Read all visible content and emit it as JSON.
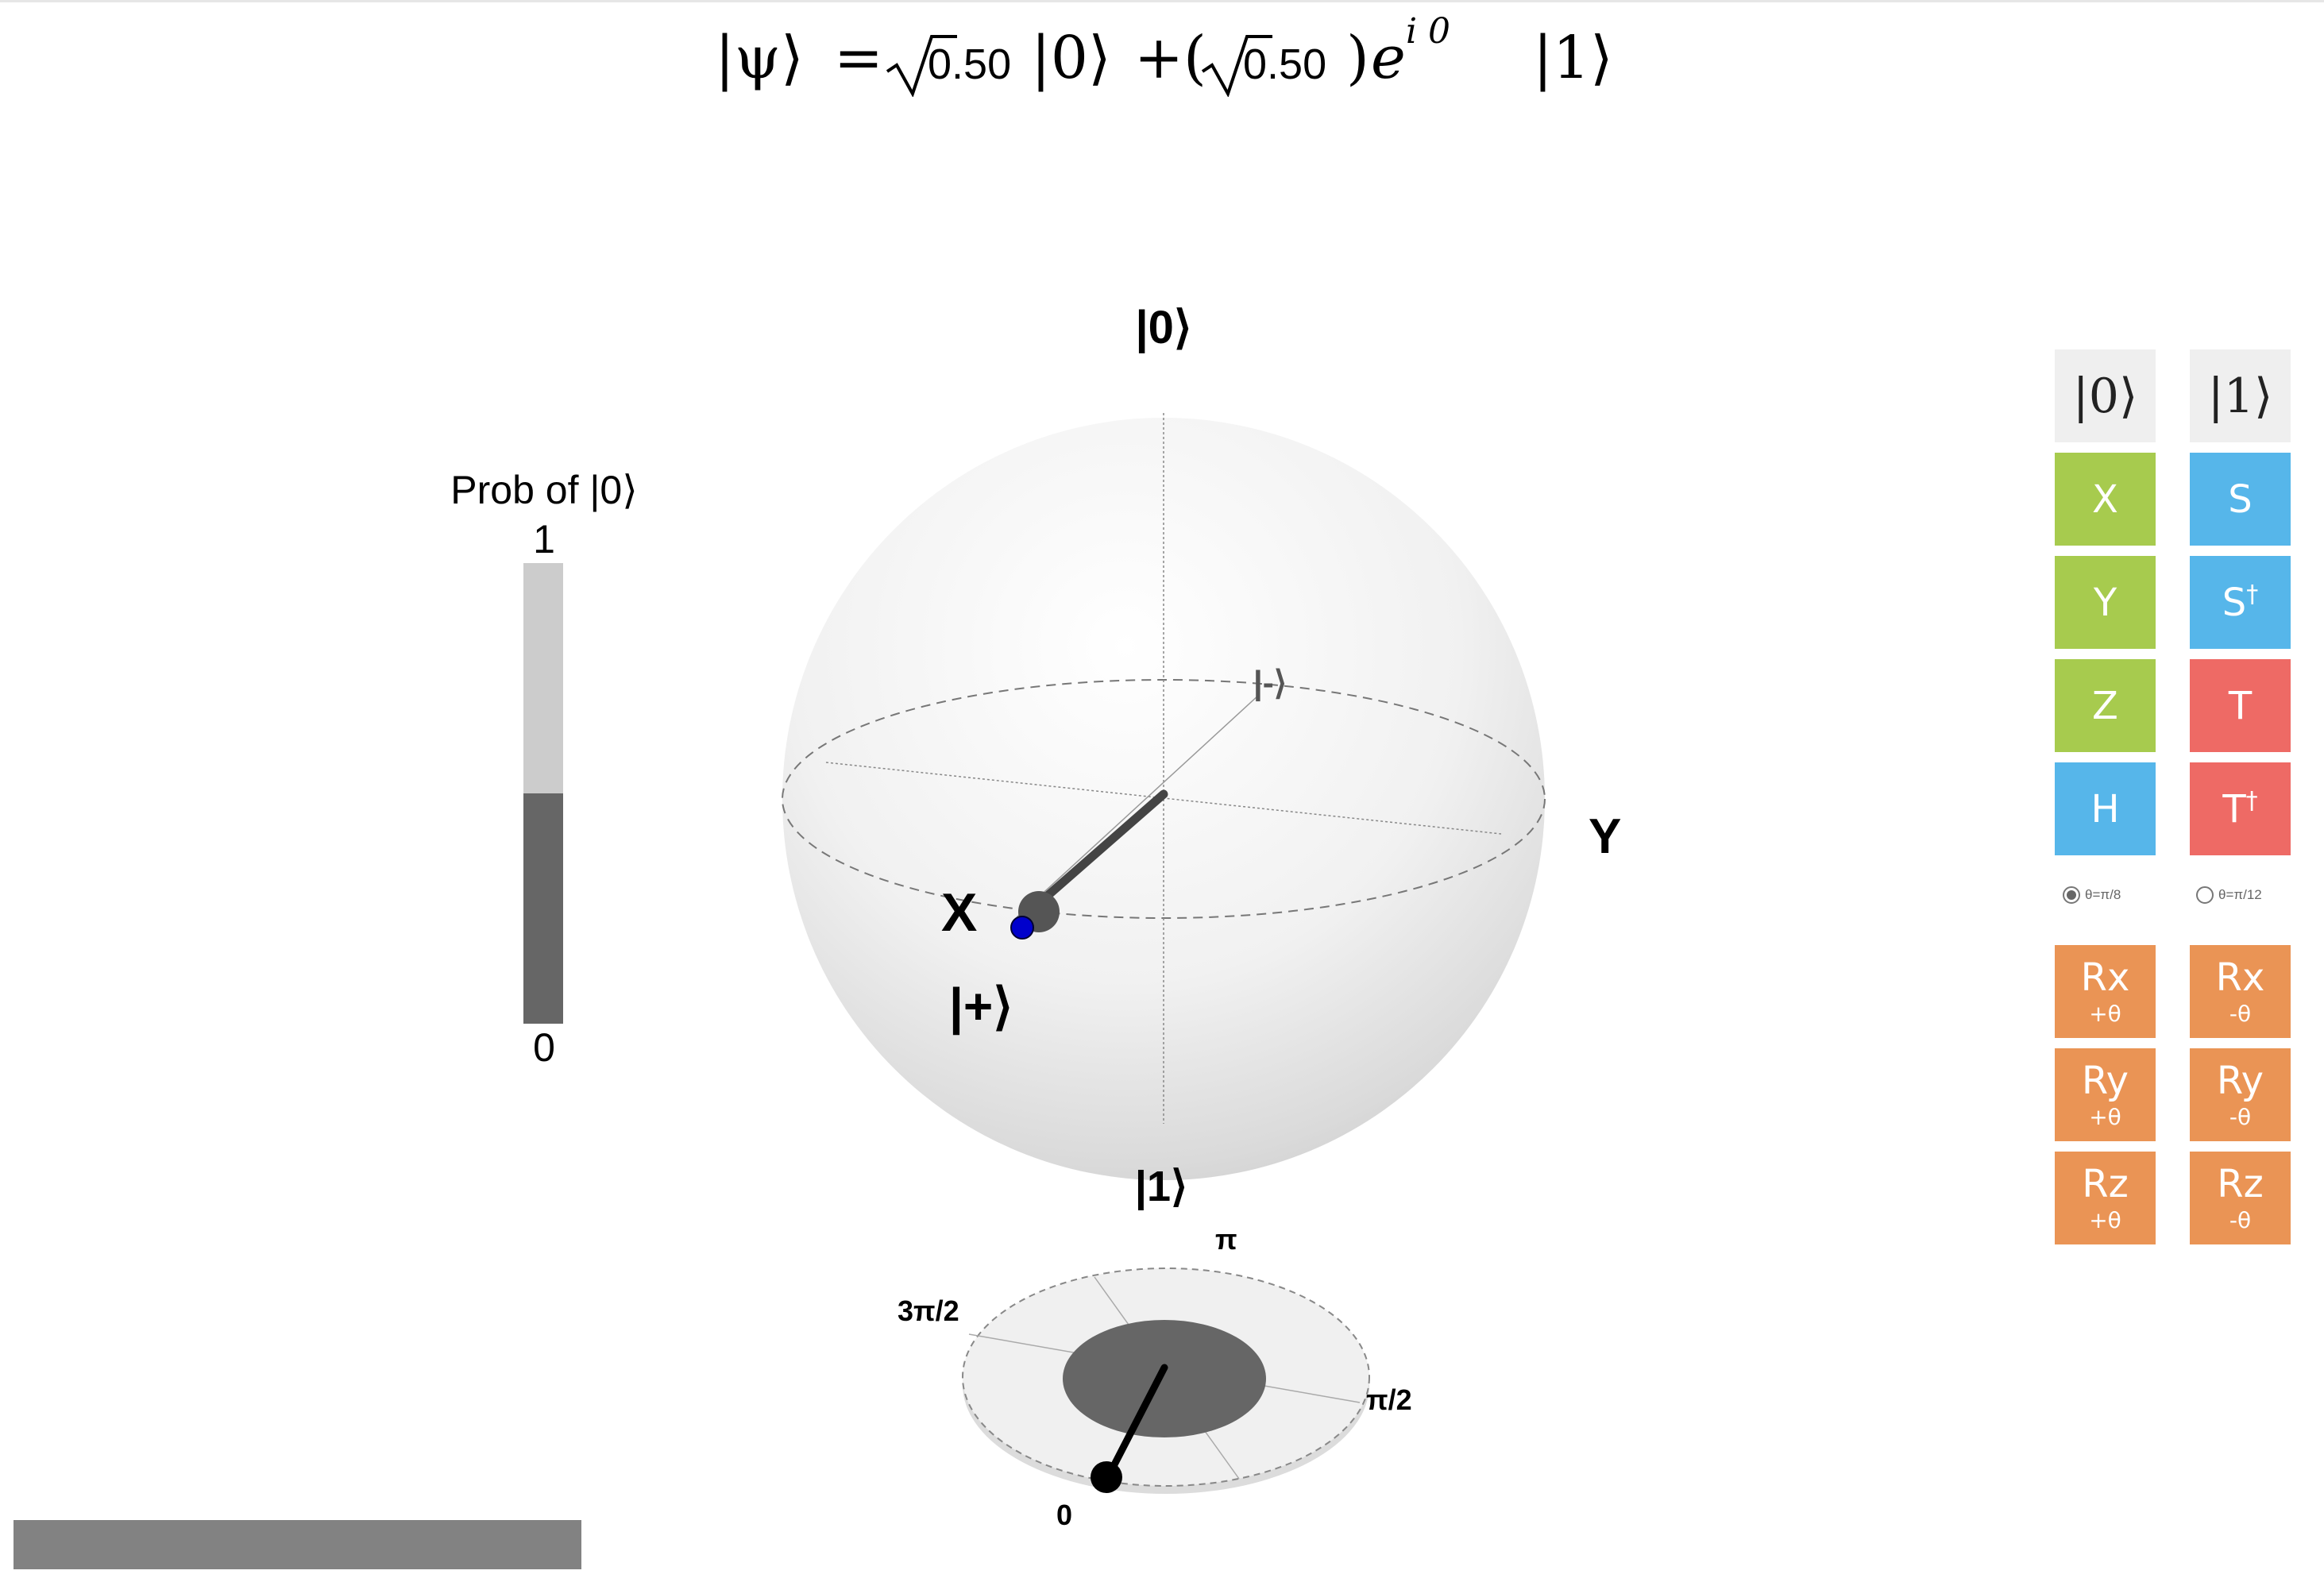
{
  "formula": {
    "lhs": "|ψ⟩",
    "eq": "=",
    "amp0": "0.50",
    "ket0": "|0⟩",
    "plus": "+",
    "lparen": "(",
    "amp1": "0.50",
    "rparen": ")",
    "exp_base": "e",
    "exp_power": "i 0",
    "ket1": "|1⟩"
  },
  "probability_bar": {
    "title": "Prob of |0⟩",
    "top_label": "1",
    "bottom_label": "0",
    "value": 0.5,
    "fill_color": "#666666",
    "track_color": "#cccccc"
  },
  "bloch_sphere": {
    "label_top": "|0⟩",
    "label_bottom": "|1⟩",
    "label_x": "X",
    "label_y": "Y",
    "label_plus": "|+⟩",
    "label_minus": "|-⟩",
    "state_marker_color": "#0000cc"
  },
  "phase_disc": {
    "label_0": "0",
    "label_pi_half": "π/2",
    "label_pi": "π",
    "label_3pi_half": "3π/2",
    "phase": 0
  },
  "gates": {
    "state0": "|0⟩",
    "state1": "|1⟩",
    "x": "X",
    "y": "Y",
    "z": "Z",
    "h": "H",
    "s": "S",
    "sdg_base": "S",
    "dagger": "†",
    "t": "T",
    "tdg_base": "T",
    "rx": "Rx",
    "ry": "Ry",
    "rz": "Rz",
    "plus_theta": "+θ",
    "minus_theta": "-θ"
  },
  "theta_options": {
    "option1": "θ=π/8",
    "option2": "θ=π/12",
    "selected": "option1"
  },
  "colors": {
    "green": "#a7cb4e",
    "blue": "#56b6ea",
    "red": "#ee6a65",
    "orange": "#ea9455",
    "grey": "#efefef"
  }
}
